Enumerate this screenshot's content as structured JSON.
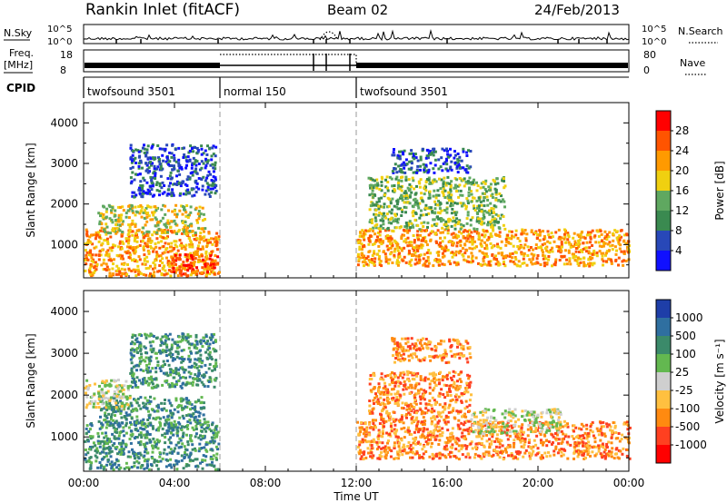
{
  "header": {
    "title": "Rankin Inlet (fitACF)",
    "beam": "Beam 02",
    "date": "24/Feb/2013"
  },
  "strips": {
    "nsky_label": "N.Sky",
    "nsky_ticks": [
      "10^5",
      "10^0"
    ],
    "nsearch_label": "N.Search",
    "freq_label": "Freq.",
    "freq_unit": "[MHz]",
    "freq_ticks": [
      "18",
      "8"
    ],
    "nave_label": "Nave",
    "nave_ticks": [
      "80",
      "0"
    ],
    "cpid_label": "CPID",
    "cpid_segments": [
      {
        "label": "twofsound 3501",
        "start_h": 0,
        "end_h": 6
      },
      {
        "label": "normal 150",
        "start_h": 6,
        "end_h": 12
      },
      {
        "label": "twofsound 3501",
        "start_h": 12,
        "end_h": 24
      }
    ]
  },
  "chart_data": [
    {
      "type": "heatmap",
      "quantity": "power",
      "xlabel": "Time UT",
      "ylabel": "Slant Range [km]",
      "xlim": [
        0,
        24
      ],
      "ylim": [
        180,
        4500
      ],
      "x_ticks": [
        "00:00",
        "04:00",
        "08:00",
        "12:00",
        "16:00",
        "20:00",
        "00:00"
      ],
      "y_ticks": [
        1000,
        2000,
        3000,
        4000
      ],
      "colorbar": {
        "label": "Power [dB]",
        "ticks": [
          "4",
          "8",
          "12",
          "16",
          "20",
          "24",
          "28"
        ],
        "colors": [
          "#1010ff",
          "#2848b8",
          "#3a8a50",
          "#5fa860",
          "#f0d010",
          "#ff9a00",
          "#ff5400",
          "#ff0000"
        ]
      },
      "regions": [
        {
          "t0": 0,
          "t1": 5.9,
          "r0": 250,
          "r1": 1400,
          "level": 5
        },
        {
          "t0": 0.6,
          "t1": 5.3,
          "r0": 1300,
          "r1": 2000,
          "level": 4
        },
        {
          "t0": 3.8,
          "t1": 6.0,
          "r0": 300,
          "r1": 800,
          "level": 6
        },
        {
          "t0": 2.0,
          "t1": 5.8,
          "r0": 2200,
          "r1": 3500,
          "level": 1
        },
        {
          "t0": 12.0,
          "t1": 24,
          "r0": 500,
          "r1": 1400,
          "level": 5
        },
        {
          "t0": 12.5,
          "t1": 18.5,
          "r0": 1400,
          "r1": 2700,
          "level": 3
        },
        {
          "t0": 13.5,
          "t1": 17.0,
          "r0": 2800,
          "r1": 3400,
          "level": 1
        }
      ]
    },
    {
      "type": "heatmap",
      "quantity": "velocity",
      "xlabel": "Time UT",
      "ylabel": "Slant Range [km]",
      "xlim": [
        0,
        24
      ],
      "ylim": [
        180,
        4500
      ],
      "x_ticks": [
        "00:00",
        "04:00",
        "08:00",
        "12:00",
        "16:00",
        "20:00",
        "00:00"
      ],
      "y_ticks": [
        1000,
        2000,
        3000,
        4000
      ],
      "colorbar": {
        "label": "Velocity [m s⁻¹]",
        "ticks": [
          "1000",
          "500",
          "100",
          "25",
          "-25",
          "-100",
          "-500",
          "-1000"
        ],
        "colors": [
          "#1e3ea8",
          "#2f6fa0",
          "#3b8a6a",
          "#63b850",
          "#cfcfcf",
          "#ffc040",
          "#ff8a10",
          "#ff4020",
          "#ff0000"
        ]
      },
      "regions": [
        {
          "t0": 0,
          "t1": 5.9,
          "r0": 250,
          "r1": 1400,
          "level": 2
        },
        {
          "t0": 0.6,
          "t1": 5.3,
          "r0": 1300,
          "r1": 2000,
          "level": 2
        },
        {
          "t0": 0,
          "t1": 2.0,
          "r0": 1700,
          "r1": 2400,
          "level": 4
        },
        {
          "t0": 2.0,
          "t1": 5.8,
          "r0": 2200,
          "r1": 3500,
          "level": 2
        },
        {
          "t0": 12.0,
          "t1": 24,
          "r0": 500,
          "r1": 1400,
          "level": 6
        },
        {
          "t0": 12.5,
          "t1": 17.0,
          "r0": 1400,
          "r1": 2600,
          "level": 6
        },
        {
          "t0": 17.0,
          "t1": 21.0,
          "r0": 1100,
          "r1": 1700,
          "level": 4
        },
        {
          "t0": 13.5,
          "t1": 17.0,
          "r0": 2800,
          "r1": 3400,
          "level": 6
        }
      ]
    }
  ]
}
